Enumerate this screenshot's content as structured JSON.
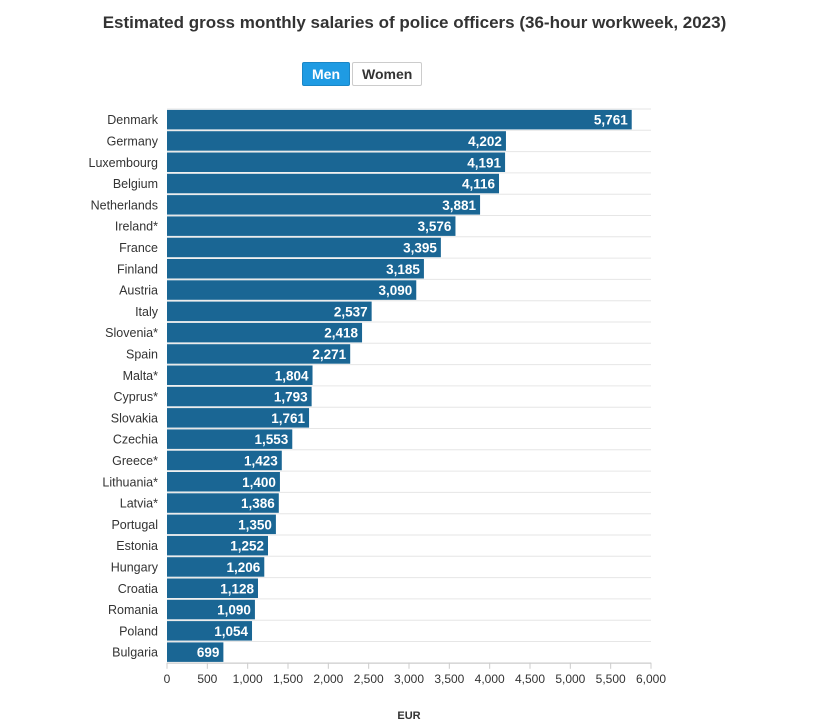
{
  "chart_data": {
    "type": "bar",
    "orientation": "horizontal",
    "title": "Estimated gross monthly salaries of police officers (36-hour workweek, 2023)",
    "xlabel": "EUR",
    "ylabel": "",
    "xlim": [
      0,
      6000
    ],
    "xticks": [
      "0",
      "500",
      "1,000",
      "1,500",
      "2,000",
      "2,500",
      "3,000",
      "3,500",
      "4,000",
      "4,500",
      "5,000",
      "5,500",
      "6,000"
    ],
    "xtick_values": [
      0,
      500,
      1000,
      1500,
      2000,
      2500,
      3000,
      3500,
      4000,
      4500,
      5000,
      5500,
      6000
    ],
    "grid": true,
    "bar_color": "#1a6694",
    "categories": [
      "Denmark",
      "Germany",
      "Luxembourg",
      "Belgium",
      "Netherlands",
      "Ireland*",
      "France",
      "Finland",
      "Austria",
      "Italy",
      "Slovenia*",
      "Spain",
      "Malta*",
      "Cyprus*",
      "Slovakia",
      "Czechia",
      "Greece*",
      "Lithuania*",
      "Latvia*",
      "Portugal",
      "Estonia",
      "Hungary",
      "Croatia",
      "Romania",
      "Poland",
      "Bulgaria"
    ],
    "values": [
      5761,
      4202,
      4191,
      4116,
      3881,
      3576,
      3395,
      3185,
      3090,
      2537,
      2418,
      2271,
      1804,
      1793,
      1761,
      1553,
      1423,
      1400,
      1386,
      1350,
      1252,
      1206,
      1128,
      1090,
      1054,
      699
    ],
    "value_labels": [
      "5,761",
      "4,202",
      "4,191",
      "4,116",
      "3,881",
      "3,576",
      "3,395",
      "3,185",
      "3,090",
      "2,537",
      "2,418",
      "2,271",
      "1,804",
      "1,793",
      "1,761",
      "1,553",
      "1,423",
      "1,400",
      "1,386",
      "1,350",
      "1,252",
      "1,206",
      "1,128",
      "1,090",
      "1,054",
      "699"
    ]
  },
  "toggles": {
    "men_label": "Men",
    "women_label": "Women",
    "selected": "Men",
    "active_color": "#1f9be3"
  }
}
